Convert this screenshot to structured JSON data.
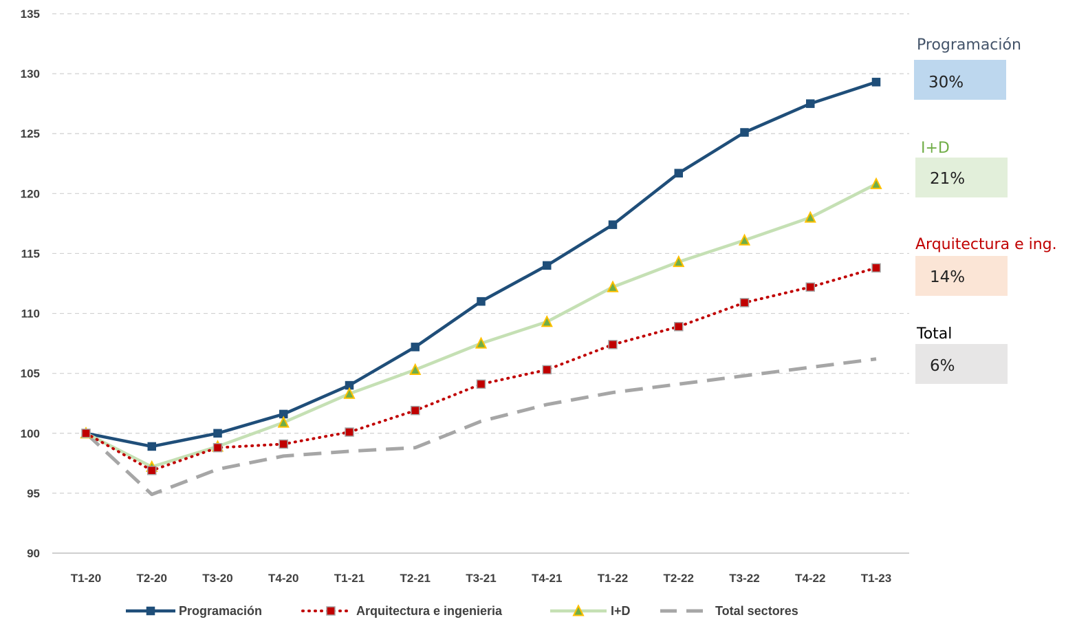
{
  "chart_data": {
    "type": "line",
    "categories": [
      "T1-20",
      "T2-20",
      "T3-20",
      "T4-20",
      "T1-21",
      "T2-21",
      "T3-21",
      "T4-21",
      "T1-22",
      "T2-22",
      "T3-22",
      "T4-22",
      "T1-23"
    ],
    "ylim": [
      90,
      135
    ],
    "yticks": [
      "90",
      "95",
      "100",
      "105",
      "110",
      "115",
      "120",
      "125",
      "130",
      "135"
    ],
    "grid": true,
    "legend_position": "bottom",
    "series": [
      {
        "name": "Programación",
        "color": "#1f4e79",
        "style": "solid",
        "marker": "square",
        "values": [
          100,
          98.9,
          100,
          101.6,
          104,
          107.2,
          111,
          114,
          117.4,
          121.7,
          125.1,
          127.5,
          129.3
        ]
      },
      {
        "name": "Arquitectura e ingenieria",
        "color": "#c00000",
        "style": "dotted",
        "marker": "square",
        "values": [
          100,
          96.9,
          98.8,
          99.1,
          100.1,
          101.9,
          104.1,
          105.3,
          107.4,
          108.9,
          110.9,
          112.2,
          113.8
        ]
      },
      {
        "name": "I+D",
        "color": "#c5e0b4",
        "style": "solid",
        "marker": "triangle",
        "values": [
          100,
          97.2,
          98.9,
          100.9,
          103.3,
          105.3,
          107.5,
          109.3,
          112.2,
          114.3,
          116.1,
          118,
          120.8
        ]
      },
      {
        "name": "Total sectores",
        "color": "#a6a6a6",
        "style": "dashed",
        "marker": "none",
        "values": [
          100,
          94.9,
          97,
          98.1,
          98.5,
          98.8,
          101,
          102.4,
          103.4,
          104.1,
          104.8,
          105.5,
          106.2
        ]
      }
    ],
    "annotations": [
      {
        "label": "Programación",
        "value": "30%",
        "label_color": "#44546a",
        "box_color": "#bdd7ee"
      },
      {
        "label": "I+D",
        "value": "21%",
        "label_color": "#70ad47",
        "box_color": "#e2efda"
      },
      {
        "label": "Arquitectura e ing.",
        "value": "14%",
        "label_color": "#c00000",
        "box_color": "#fbe5d6"
      },
      {
        "label": "Total",
        "value": "6%",
        "label_color": "#000000",
        "box_color": "#e7e6e6"
      }
    ]
  }
}
